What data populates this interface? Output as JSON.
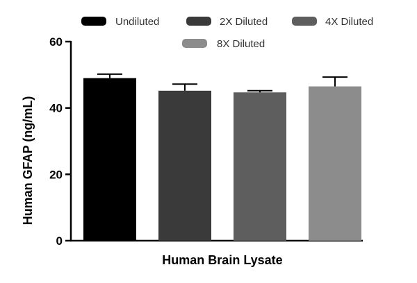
{
  "chart_data": {
    "type": "bar",
    "xlabel": "Human Brain Lysate",
    "ylabel": "Human GFAP (ng/mL)",
    "ylim": [
      0,
      60
    ],
    "yticks": [
      0,
      20,
      40,
      60
    ],
    "grid": false,
    "legend_position": "top",
    "series": [
      {
        "name": "Undiluted",
        "value": 49.0,
        "error": 1.2,
        "color": "#000000"
      },
      {
        "name": "2X Diluted",
        "value": 45.2,
        "error": 2.0,
        "color": "#3a3a3a"
      },
      {
        "name": "4X Diluted",
        "value": 44.7,
        "error": 0.5,
        "color": "#5e5e5e"
      },
      {
        "name": "8X Diluted",
        "value": 46.5,
        "error": 2.8,
        "color": "#8c8c8c"
      }
    ]
  }
}
